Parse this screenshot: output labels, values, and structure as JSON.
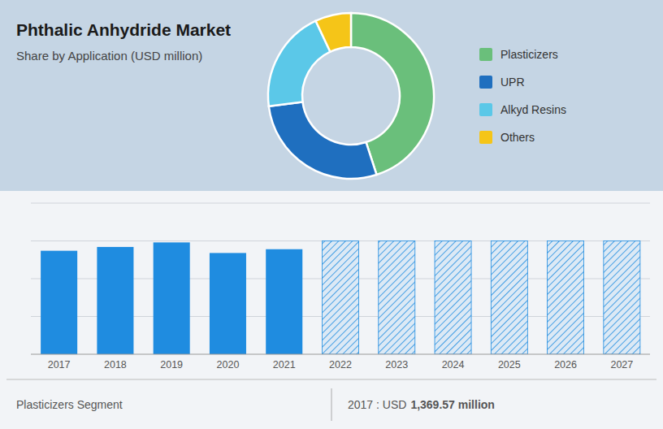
{
  "chart_data": [
    {
      "type": "pie",
      "title": "Phthalic Anhydride Market",
      "subtitle": "Share by Application (USD million)",
      "categories": [
        "Plasticizers",
        "UPR",
        "Alkyd Resins",
        "Others"
      ],
      "values": [
        45,
        28,
        20,
        7
      ],
      "colors": [
        "#6abf7b",
        "#1f6fbf",
        "#5bc8e8",
        "#f5c518"
      ],
      "legend": "right"
    },
    {
      "type": "bar",
      "categories": [
        "2017",
        "2018",
        "2019",
        "2020",
        "2021",
        "2022",
        "2023",
        "2024",
        "2025",
        "2026",
        "2027"
      ],
      "values": [
        1369.57,
        1420,
        1480,
        1340,
        1390,
        1500,
        1500,
        1500,
        1500,
        1500,
        1500
      ],
      "color": "#1f8ce0",
      "colors": [
        "#1f8ce0",
        "#1f8ce0",
        "#1f8ce0",
        "#1f8ce0",
        "#1f8ce0",
        "#dce9f5",
        "#dce9f5",
        "#dce9f5",
        "#dce9f5",
        "#dce9f5",
        "#dce9f5"
      ],
      "ylim": [
        0,
        2000
      ],
      "yticks": [
        500,
        1000,
        1500,
        2000
      ],
      "grid": true,
      "tick_labels": "x",
      "annotations": [
        "Plasticizers Segment",
        "2017 : USD",
        "1,369.57 million"
      ]
    }
  ]
}
